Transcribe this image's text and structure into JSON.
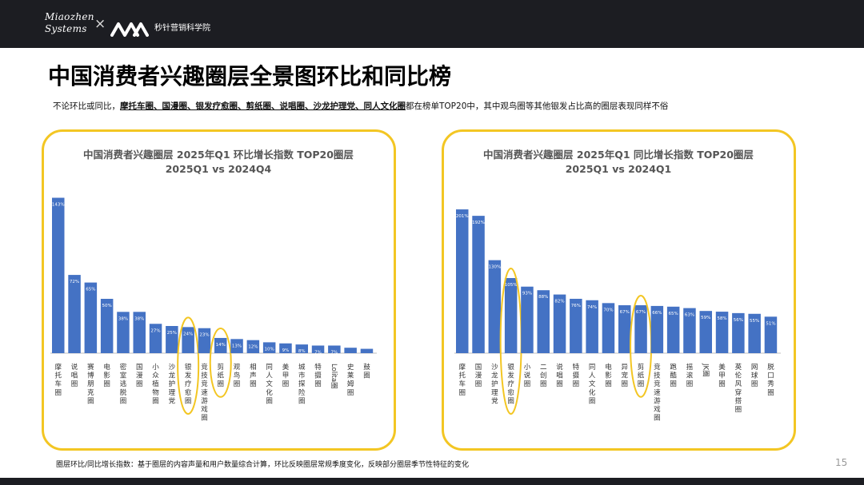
{
  "header": {
    "brand_line1": "Miaozhen",
    "brand_line2": "Systems",
    "separator": "×",
    "academy": "秒针营销科学院"
  },
  "page_title": "中国消费者兴趣圈层全景图环比和同比榜",
  "subtitle": {
    "prefix": "不论环比或同比，",
    "highlight": "摩托车圈、国漫圈、银发疗愈圈、剪纸圈、说唱圈、沙龙护理党、同人文化圈",
    "suffix": "都在榜单TOP20中，其中观鸟圈等其他银发占比高的圈层表现同样不俗"
  },
  "colors": {
    "bar": "#4472c4",
    "highlight_ring": "#f3c623",
    "header_bg": "#1c1d22"
  },
  "chart_data": [
    {
      "type": "bar",
      "title": "中国消费者兴趣圈层  2025年Q1  环比增长指数 TOP20圈层",
      "subtitle": "2025Q1 vs 2024Q4",
      "categories": [
        "摩托车圈",
        "说唱圈",
        "赛博朋克圈",
        "电影圈",
        "密室逃脱圈",
        "国漫圈",
        "小众植物圈",
        "沙龙护理党",
        "银发疗愈圈",
        "竞技竞速游戏圈",
        "剪纸圈",
        "观鸟圈",
        "相声圈",
        "同人文化圈",
        "美甲圈",
        "城市探险圈",
        "特摄圈",
        "Lolita圈",
        "史莱姆圈",
        "鼓圈"
      ],
      "values": [
        143,
        72,
        65,
        50,
        38,
        38,
        27,
        25,
        24,
        23,
        14,
        13,
        12,
        10,
        9,
        8,
        7,
        7,
        5,
        4
      ],
      "data_labels": [
        "143%",
        "72%",
        "65%",
        "50%",
        "38%",
        "38%",
        "27%",
        "25%",
        "24%",
        "23%",
        "14%",
        "13%",
        "12%",
        "10%",
        "9%",
        "8%",
        "7%",
        "7%",
        "",
        ""
      ],
      "ylim": [
        0,
        150
      ],
      "highlighted": [
        "银发疗愈圈",
        "剪纸圈"
      ],
      "grid": false,
      "legend": "none"
    },
    {
      "type": "bar",
      "title": "中国消费者兴趣圈层  2025年Q1  同比增长指数 TOP20圈层",
      "subtitle": "2025Q1 vs 2024Q1",
      "categories": [
        "摩托车圈",
        "国漫圈",
        "沙龙护理党",
        "银发疗愈圈",
        "小说圈",
        "二创圈",
        "说唱圈",
        "特摄圈",
        "同人文化圈",
        "电影圈",
        "异宠圈",
        "剪纸圈",
        "竞技竞速游戏圈",
        "跑酷圈",
        "摇滚圈",
        "JK圈",
        "美甲圈",
        "英伦风穿搭圈",
        "网球圈",
        "脱口秀圈"
      ],
      "values": [
        201,
        192,
        130,
        105,
        93,
        88,
        82,
        76,
        74,
        70,
        67,
        67,
        66,
        65,
        63,
        59,
        58,
        56,
        55,
        51
      ],
      "data_labels": [
        "201%",
        "192%",
        "130%",
        "105%",
        "93%",
        "88%",
        "82%",
        "76%",
        "74%",
        "70%",
        "67%",
        "67%",
        "66%",
        "65%",
        "63%",
        "59%",
        "58%",
        "56%",
        "55%",
        "51%"
      ],
      "ylim": [
        0,
        210
      ],
      "highlighted": [
        "银发疗愈圈",
        "剪纸圈"
      ],
      "grid": false,
      "legend": "none"
    }
  ],
  "footnote": "圈层环比/同比增长指数：基于圈层的内容声量和用户数量综合计算，环比反映圈层常规季度变化，反映部分圈层季节性特征的变化",
  "page_number": "15"
}
